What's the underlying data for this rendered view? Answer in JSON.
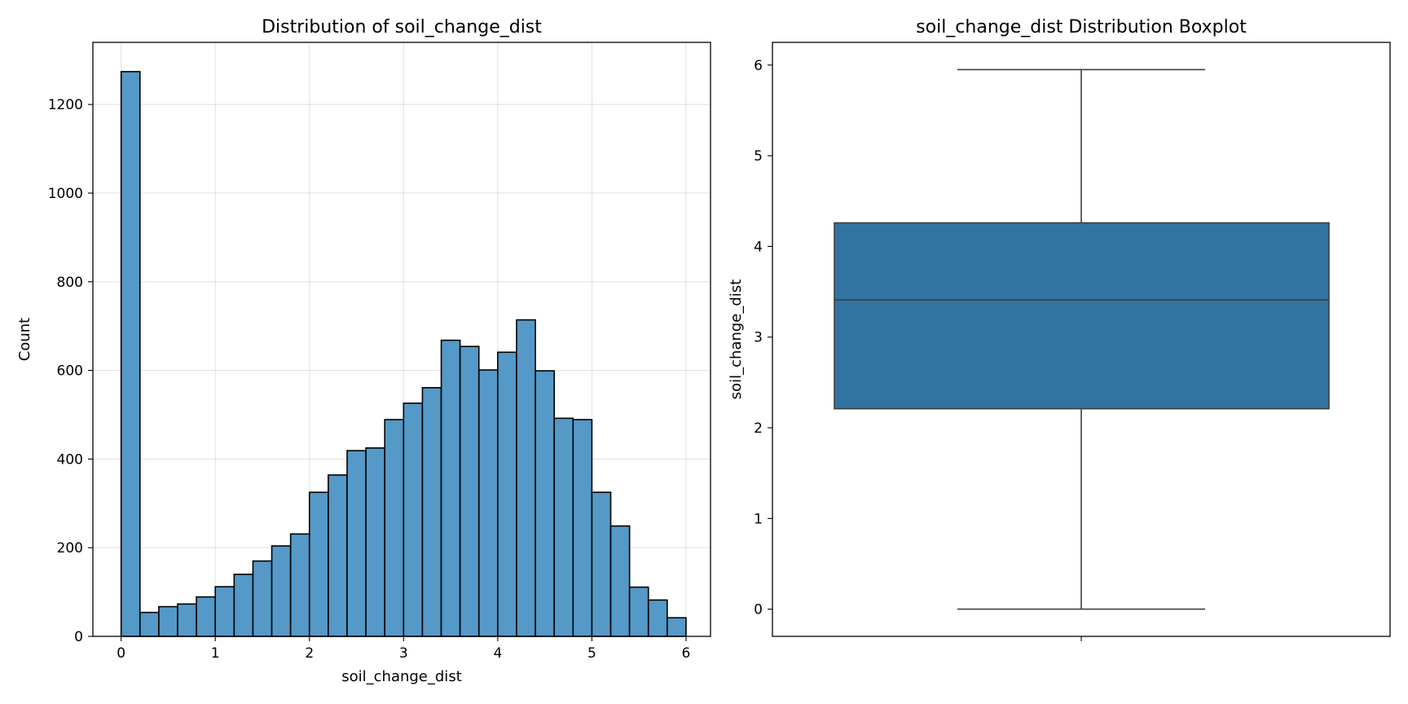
{
  "chart_data": [
    {
      "type": "bar",
      "subtype": "histogram",
      "title": "Distribution of soil_change_dist",
      "xlabel": "soil_change_dist",
      "ylabel": "Count",
      "xlim": [
        -0.3,
        6.26
      ],
      "ylim": [
        0,
        1340
      ],
      "xticks": [
        0,
        1,
        2,
        3,
        4,
        5,
        6
      ],
      "xtick_labels": [
        "0",
        "1",
        "2",
        "3",
        "4",
        "5",
        "6"
      ],
      "yticks": [
        0,
        200,
        400,
        600,
        800,
        1000,
        1200
      ],
      "ytick_labels": [
        "0",
        "200",
        "400",
        "600",
        "800",
        "1000",
        "1200"
      ],
      "grid": true,
      "bar_color": "#5499c7",
      "edge_color": "#000000",
      "bin_start": 0.0,
      "bin_width": 0.2,
      "values": [
        1274,
        54,
        67,
        73,
        89,
        112,
        140,
        170,
        204,
        231,
        325,
        364,
        419,
        425,
        489,
        526,
        561,
        668,
        654,
        601,
        641,
        714,
        599,
        492,
        489,
        325,
        249,
        111,
        82,
        42
      ]
    },
    {
      "type": "boxplot",
      "title": "soil_change_dist Distribution Boxplot",
      "xlabel": "",
      "ylabel": "soil_change_dist",
      "ylim": [
        -0.3,
        6.25
      ],
      "yticks": [
        0,
        1,
        2,
        3,
        4,
        5,
        6
      ],
      "ytick_labels": [
        "0",
        "1",
        "2",
        "3",
        "4",
        "5",
        "6"
      ],
      "grid": false,
      "box_color": "#3274a1",
      "whisker_low": 0.0,
      "q1": 2.21,
      "median": 3.41,
      "q3": 4.26,
      "whisker_high": 5.95
    }
  ]
}
